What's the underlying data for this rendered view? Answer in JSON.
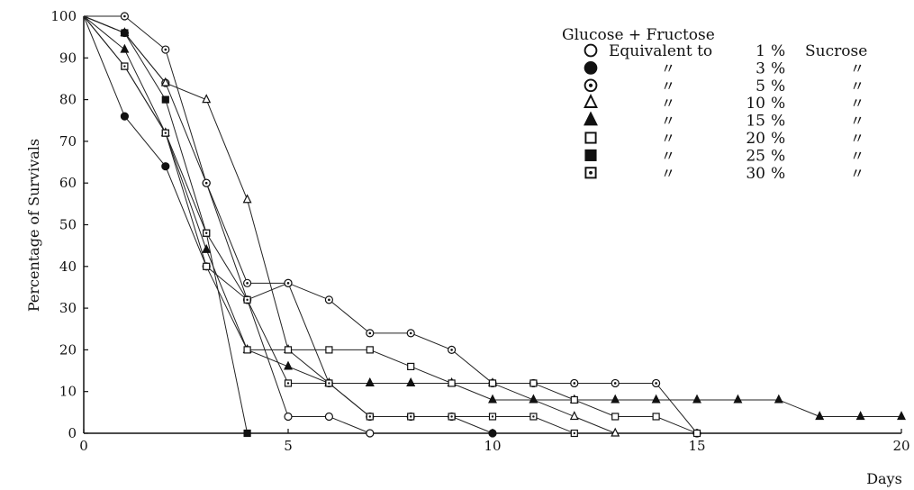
{
  "chart_data": {
    "type": "line",
    "xlabel": "Days",
    "ylabel": "Percentage of Survivals",
    "xlim": [
      0,
      20
    ],
    "ylim": [
      0,
      100
    ],
    "x_ticks": [
      "0",
      "5",
      "10",
      "15",
      "20"
    ],
    "y_ticks": [
      "0",
      "10",
      "20",
      "30",
      "40",
      "50",
      "60",
      "70",
      "80",
      "90",
      "100"
    ],
    "grid": false,
    "legend": {
      "placement": "top-right",
      "title": "Glucose + Fructose",
      "column_headers": [
        "Equivalent to",
        "Sucrose"
      ],
      "ditto": "〃"
    },
    "series": [
      {
        "name": "1 %",
        "marker": "open-circle",
        "pct": "1",
        "pct_sym": "%",
        "points": [
          [
            0,
            100
          ],
          [
            1,
            96
          ],
          [
            2,
            84
          ],
          [
            3,
            60
          ],
          [
            4,
            32
          ],
          [
            5,
            4
          ],
          [
            6,
            4
          ],
          [
            7,
            0
          ]
        ]
      },
      {
        "name": "3 %",
        "marker": "filled-circle",
        "pct": "3",
        "pct_sym": "%",
        "points": [
          [
            0,
            100
          ],
          [
            1,
            76
          ],
          [
            2,
            64
          ],
          [
            3,
            40
          ],
          [
            4,
            32
          ],
          [
            5,
            36
          ],
          [
            6,
            12
          ],
          [
            7,
            4
          ],
          [
            8,
            4
          ],
          [
            9,
            4
          ],
          [
            10,
            0
          ]
        ]
      },
      {
        "name": "5 %",
        "marker": "dot-circle",
        "pct": "5",
        "pct_sym": "%",
        "points": [
          [
            0,
            100
          ],
          [
            1,
            100
          ],
          [
            2,
            92
          ],
          [
            3,
            60
          ],
          [
            4,
            36
          ],
          [
            5,
            36
          ],
          [
            6,
            32
          ],
          [
            7,
            24
          ],
          [
            8,
            24
          ],
          [
            9,
            20
          ],
          [
            10,
            12
          ],
          [
            11,
            12
          ],
          [
            12,
            12
          ],
          [
            13,
            12
          ],
          [
            14,
            12
          ],
          [
            15,
            0
          ]
        ]
      },
      {
        "name": "10 %",
        "marker": "open-triangle",
        "pct": "10",
        "pct_sym": "%",
        "points": [
          [
            0,
            100
          ],
          [
            1,
            96
          ],
          [
            2,
            84
          ],
          [
            3,
            80
          ],
          [
            4,
            56
          ],
          [
            5,
            20
          ],
          [
            6,
            12
          ],
          [
            7,
            12
          ],
          [
            8,
            12
          ],
          [
            9,
            12
          ],
          [
            10,
            12
          ],
          [
            11,
            8
          ],
          [
            12,
            4
          ],
          [
            13,
            0
          ]
        ]
      },
      {
        "name": "15 %",
        "marker": "filled-triangle",
        "pct": "15",
        "pct_sym": "%",
        "points": [
          [
            0,
            100
          ],
          [
            1,
            92
          ],
          [
            2,
            72
          ],
          [
            3,
            44
          ],
          [
            4,
            20
          ],
          [
            5,
            16
          ],
          [
            6,
            12
          ],
          [
            7,
            12
          ],
          [
            8,
            12
          ],
          [
            9,
            12
          ],
          [
            10,
            8
          ],
          [
            11,
            8
          ],
          [
            12,
            8
          ],
          [
            13,
            8
          ],
          [
            14,
            8
          ],
          [
            15,
            8
          ],
          [
            16,
            8
          ],
          [
            17,
            8
          ],
          [
            18,
            4
          ],
          [
            19,
            4
          ],
          [
            20,
            4
          ]
        ]
      },
      {
        "name": "20 %",
        "marker": "open-square",
        "pct": "20",
        "pct_sym": "%",
        "points": [
          [
            0,
            100
          ],
          [
            1,
            88
          ],
          [
            2,
            72
          ],
          [
            3,
            40
          ],
          [
            4,
            20
          ],
          [
            5,
            20
          ],
          [
            6,
            20
          ],
          [
            7,
            20
          ],
          [
            8,
            16
          ],
          [
            9,
            12
          ],
          [
            10,
            12
          ],
          [
            11,
            12
          ],
          [
            12,
            8
          ],
          [
            13,
            4
          ],
          [
            14,
            4
          ],
          [
            15,
            0
          ]
        ]
      },
      {
        "name": "25 %",
        "marker": "filled-square",
        "pct": "25",
        "pct_sym": "%",
        "points": [
          [
            0,
            100
          ],
          [
            1,
            96
          ],
          [
            2,
            80
          ],
          [
            3,
            48
          ],
          [
            4,
            0
          ]
        ]
      },
      {
        "name": "30 %",
        "marker": "dot-square",
        "pct": "30",
        "pct_sym": "%",
        "points": [
          [
            0,
            100
          ],
          [
            1,
            88
          ],
          [
            2,
            72
          ],
          [
            3,
            48
          ],
          [
            4,
            32
          ],
          [
            5,
            12
          ],
          [
            6,
            12
          ],
          [
            7,
            4
          ],
          [
            8,
            4
          ],
          [
            9,
            4
          ],
          [
            10,
            4
          ],
          [
            11,
            4
          ],
          [
            12,
            0
          ]
        ]
      }
    ]
  }
}
